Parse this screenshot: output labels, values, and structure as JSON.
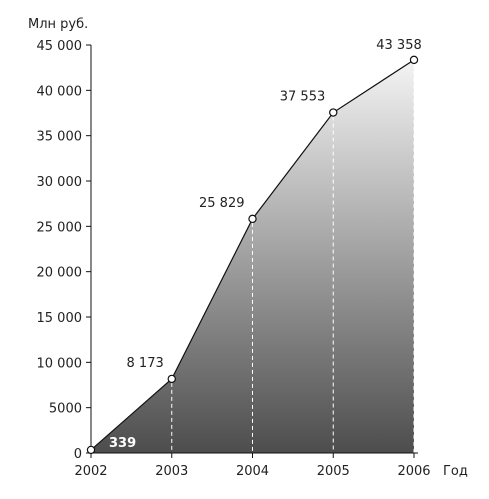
{
  "chart_data": {
    "type": "area",
    "ylabel": "Млн руб.",
    "xlabel": "Год",
    "x": [
      "2002",
      "2003",
      "2004",
      "2005",
      "2006"
    ],
    "values": [
      339,
      8173,
      25829,
      37553,
      43358
    ],
    "data_labels": [
      "339",
      "8 173",
      "25 829",
      "37 553",
      "43 358"
    ],
    "ylim": [
      0,
      45000
    ],
    "y_ticks": [
      0,
      5000,
      10000,
      15000,
      20000,
      25000,
      30000,
      35000,
      40000,
      45000
    ],
    "y_tick_labels": [
      "0",
      "5000",
      "10 000",
      "15 000",
      "20 000",
      "25 000",
      "30 000",
      "35 000",
      "40 000",
      "45 000"
    ],
    "grid": false,
    "fill": "gradient-dark-bottom",
    "colors": {
      "line": "#111111",
      "fill_top": "#f4f4f4",
      "fill_bottom": "#4d4d4d",
      "guide": "#ffffff"
    }
  }
}
